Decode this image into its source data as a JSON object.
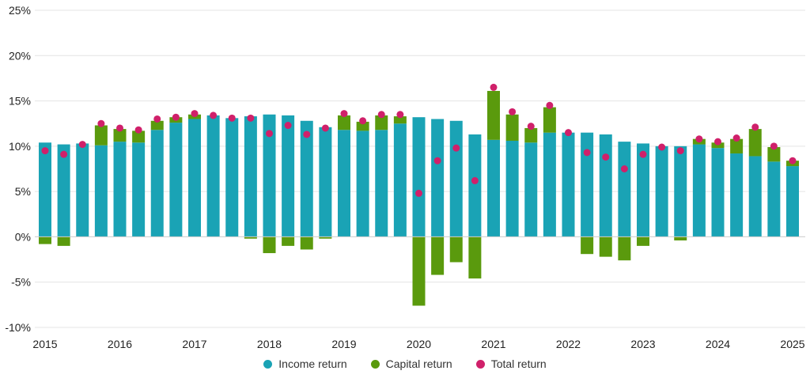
{
  "chart_data": {
    "type": "bar",
    "title": "",
    "xlabel": "",
    "ylabel": "",
    "ylim": [
      -10,
      25
    ],
    "y_ticks": [
      "25%",
      "20%",
      "15%",
      "10%",
      "5%",
      "0%",
      "-5%",
      "-10%"
    ],
    "x_ticks": [
      "2015",
      "2016",
      "2017",
      "2018",
      "2019",
      "2020",
      "2021",
      "2022",
      "2023",
      "2024",
      "2025"
    ],
    "grid": true,
    "legend_position": "bottom",
    "colors": {
      "income": "#1aa3b5",
      "capital": "#5a9a0d",
      "total": "#d0206a"
    },
    "categories": [
      "2015 Q1",
      "2015 Q2",
      "2015 Q3",
      "2015 Q4",
      "2016 Q1",
      "2016 Q2",
      "2016 Q3",
      "2016 Q4",
      "2017 Q1",
      "2017 Q2",
      "2017 Q3",
      "2017 Q4",
      "2018 Q1",
      "2018 Q2",
      "2018 Q3",
      "2018 Q4",
      "2019 Q1",
      "2019 Q2",
      "2019 Q3",
      "2019 Q4",
      "2020 Q1",
      "2020 Q2",
      "2020 Q3",
      "2020 Q4",
      "2021 Q1",
      "2021 Q2",
      "2021 Q3",
      "2021 Q4",
      "2022 Q1",
      "2022 Q2",
      "2022 Q3",
      "2022 Q4",
      "2023 Q1",
      "2023 Q2",
      "2023 Q3",
      "2023 Q4",
      "2024 Q1",
      "2024 Q2",
      "2024 Q3",
      "2024 Q4",
      "2025 Q1"
    ],
    "series": [
      {
        "name": "Income return",
        "type": "bar",
        "values": [
          10.4,
          10.2,
          10.3,
          10.1,
          10.5,
          10.4,
          11.8,
          12.6,
          13.0,
          13.4,
          13.1,
          13.3,
          13.5,
          13.4,
          12.8,
          12.1,
          11.8,
          11.7,
          11.8,
          12.5,
          13.2,
          13.0,
          12.8,
          11.3,
          10.7,
          10.6,
          10.4,
          11.5,
          11.5,
          11.5,
          11.3,
          10.5,
          10.3,
          10.0,
          10.0,
          10.2,
          9.8,
          9.2,
          8.9,
          8.3,
          7.8
        ]
      },
      {
        "name": "Capital return",
        "type": "bar",
        "values": [
          -0.8,
          -1.0,
          0.0,
          2.2,
          1.4,
          1.3,
          1.0,
          0.6,
          0.5,
          0.0,
          0.0,
          -0.2,
          -1.8,
          -1.0,
          -1.4,
          -0.2,
          1.6,
          1.0,
          1.6,
          0.8,
          -7.6,
          -4.2,
          -2.8,
          -4.6,
          5.4,
          2.9,
          1.6,
          2.8,
          0.0,
          -1.9,
          -2.2,
          -2.6,
          -1.0,
          0.0,
          -0.4,
          0.6,
          0.6,
          1.6,
          3.0,
          1.6,
          0.6
        ]
      },
      {
        "name": "Total return",
        "type": "dot",
        "values": [
          9.5,
          9.1,
          10.2,
          12.5,
          12.0,
          11.8,
          13.0,
          13.2,
          13.6,
          13.4,
          13.1,
          13.1,
          11.4,
          12.3,
          11.3,
          12.0,
          13.6,
          12.8,
          13.5,
          13.5,
          4.8,
          8.4,
          9.8,
          6.2,
          16.5,
          13.8,
          12.2,
          14.5,
          11.5,
          9.3,
          8.8,
          7.5,
          9.1,
          9.9,
          9.5,
          10.8,
          10.5,
          10.9,
          12.1,
          10.0,
          8.4
        ]
      }
    ]
  }
}
